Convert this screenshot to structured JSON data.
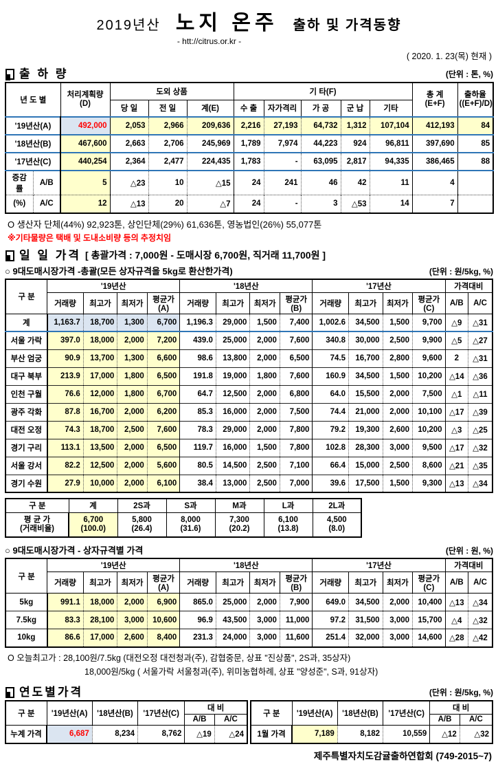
{
  "colors": {
    "highlight_yellow": "#FFFFCC",
    "highlight_blue": "#DBE5F1",
    "accent_red": "#FF0000",
    "row_border_blue": "#2E75B6"
  },
  "header": {
    "year": "2019년산",
    "title": "노지 온주",
    "subtitle": "출하 및 가격동향",
    "url": "- htt://citrus.or.kr -",
    "as_of": "( 2020. 1. 23(목) 현재 )"
  },
  "shipment": {
    "title": "출 하 량",
    "unit": "(단위 : 톤, %)",
    "head": {
      "year_col": "년 도 별",
      "plan_top": "처리계획량",
      "plan_sub": "(D)",
      "outbound_group": "도외 상품",
      "col_today": "당 일",
      "col_prev": "전 일",
      "col_sum_e": "계(E)",
      "etc_group": "기        타(F)",
      "col_export": "수 출",
      "col_quarantine": "자가격리",
      "col_process": "가 공",
      "col_military": "군 납",
      "col_etc": "기타",
      "total_top": "총  계",
      "total_sub": "(E+F)",
      "rate_top": "출하율",
      "rate_sub": "((E+F)/D)"
    },
    "year_rows": [
      {
        "label": "'19년산(A)",
        "cells": [
          "492,000",
          "2,053",
          "2,966",
          "209,636",
          "2,216",
          "27,193",
          "64,732",
          "1,312",
          "107,104",
          "412,193",
          "84"
        ]
      },
      {
        "label": "'18년산(B)",
        "cells": [
          "467,600",
          "2,663",
          "2,706",
          "245,969",
          "1,789",
          "7,974",
          "44,223",
          "924",
          "96,811",
          "397,690",
          "85"
        ]
      },
      {
        "label": "'17년산(C)",
        "cells": [
          "440,254",
          "2,364",
          "2,477",
          "224,435",
          "1,783",
          "-",
          "63,095",
          "2,817",
          "94,335",
          "386,465",
          "88"
        ]
      }
    ],
    "change_label_top": "증감률",
    "change_label_bottom": "(%)",
    "change_rows": [
      {
        "label": "A/B",
        "cells": [
          "5",
          "△23",
          "10",
          "△15",
          "24",
          "241",
          "46",
          "42",
          "11",
          "4",
          ""
        ]
      },
      {
        "label": "A/C",
        "cells": [
          "12",
          "△13",
          "20",
          "△7",
          "24",
          "-",
          "3",
          "△53",
          "14",
          "7",
          ""
        ]
      }
    ],
    "note1": "O 생산자 단체(44%)  92,923톤,  상인단체(29%)  61,636톤,  영농법인(26%)  55,077톤",
    "note2": "※기타물량은 택배 및 도내소비량 등의 추정치임"
  },
  "daily": {
    "title": "일 일 가격",
    "title_detail": "[ 총괄가격 : 7,000원 - 도매시장 6,700원, 직거래 11,700원 ]",
    "price_head": {
      "col": "구  분",
      "y19": "'19년산",
      "y18": "'18년산",
      "y17": "'17년산",
      "cmp": "가격대비",
      "qty": "거래량",
      "high": "최고가",
      "low": "최저가",
      "avgA": "평균가(A)",
      "avgB": "평균가(B)",
      "avgC": "평균가(C)",
      "ab": "A/B",
      "ac": "A/C"
    },
    "overall": {
      "subtitle": "○ 9대도매시장가격 -총괄(모든 상자규격을 5kg로 환산한가격)",
      "unit": "(단위 : 원/5kg, %)",
      "rows": [
        {
          "label": "계",
          "cells": [
            "1,163.7",
            "18,700",
            "1,300",
            "6,700",
            "1,196.3",
            "29,000",
            "1,500",
            "7,400",
            "1,002.6",
            "34,500",
            "1,500",
            "9,700",
            "△9",
            "△31"
          ]
        },
        {
          "label": "서울 가락",
          "cells": [
            "397.0",
            "18,000",
            "2,000",
            "7,200",
            "439.0",
            "25,000",
            "2,000",
            "7,600",
            "340.8",
            "30,000",
            "2,500",
            "9,900",
            "△5",
            "△27"
          ]
        },
        {
          "label": "부산 엄궁",
          "cells": [
            "90.9",
            "13,700",
            "1,300",
            "6,600",
            "98.6",
            "13,800",
            "2,000",
            "6,500",
            "74.5",
            "16,700",
            "2,800",
            "9,600",
            "2",
            "△31"
          ]
        },
        {
          "label": "대구 북부",
          "cells": [
            "213.9",
            "17,000",
            "1,800",
            "6,500",
            "191.8",
            "19,000",
            "1,800",
            "7,600",
            "160.9",
            "34,500",
            "1,500",
            "10,200",
            "△14",
            "△36"
          ]
        },
        {
          "label": "인천 구월",
          "cells": [
            "76.6",
            "12,000",
            "1,800",
            "6,700",
            "64.7",
            "12,500",
            "2,000",
            "6,800",
            "64.0",
            "15,500",
            "2,000",
            "7,500",
            "△1",
            "△11"
          ]
        },
        {
          "label": "광주 각화",
          "cells": [
            "87.8",
            "16,700",
            "2,000",
            "6,200",
            "85.3",
            "16,000",
            "2,000",
            "7,500",
            "74.4",
            "21,000",
            "2,000",
            "10,100",
            "△17",
            "△39"
          ]
        },
        {
          "label": "대전 오정",
          "cells": [
            "74.3",
            "18,700",
            "2,500",
            "7,600",
            "78.3",
            "29,000",
            "2,000",
            "7,800",
            "79.2",
            "19,300",
            "2,600",
            "10,200",
            "△3",
            "△25"
          ]
        },
        {
          "label": "경기 구리",
          "cells": [
            "113.1",
            "13,500",
            "2,000",
            "6,500",
            "119.7",
            "16,000",
            "1,500",
            "7,800",
            "102.8",
            "28,300",
            "3,000",
            "9,500",
            "△17",
            "△32"
          ]
        },
        {
          "label": "서울 강서",
          "cells": [
            "82.2",
            "12,500",
            "2,000",
            "5,600",
            "80.5",
            "14,500",
            "2,500",
            "7,100",
            "66.4",
            "15,000",
            "2,500",
            "8,600",
            "△21",
            "△35"
          ]
        },
        {
          "label": "경기 수원",
          "cells": [
            "27.9",
            "10,000",
            "2,000",
            "6,100",
            "38.4",
            "13,000",
            "2,500",
            "7,000",
            "39.6",
            "17,500",
            "1,500",
            "9,300",
            "△13",
            "△34"
          ]
        }
      ]
    },
    "by_size": {
      "col_label": "구  분",
      "cols": [
        "계",
        "2S과",
        "S과",
        "M과",
        "L과",
        "2L과"
      ],
      "row_label_top": "평 균 가",
      "row_label_bottom": "(거래비율)",
      "prices": [
        "6,700",
        "5,800",
        "8,000",
        "7,300",
        "6,100",
        "4,500"
      ],
      "ratios": [
        "(100.0)",
        "(26.4)",
        "(31.6)",
        "(20.2)",
        "(13.8)",
        "(8.0)"
      ]
    },
    "by_box": {
      "subtitle": "○ 9대도매시장가격 - 상자규격별 가격",
      "unit": "(단위 : 원, %)",
      "rows": [
        {
          "label": "5kg",
          "cells": [
            "991.1",
            "18,000",
            "2,000",
            "6,900",
            "865.0",
            "25,000",
            "2,000",
            "7,900",
            "649.0",
            "34,500",
            "2,000",
            "10,400",
            "△13",
            "△34"
          ]
        },
        {
          "label": "7.5kg",
          "cells": [
            "83.3",
            "28,100",
            "3,000",
            "10,600",
            "96.9",
            "43,500",
            "3,000",
            "11,000",
            "97.2",
            "31,500",
            "3,000",
            "15,700",
            "△4",
            "△32"
          ]
        },
        {
          "label": "10kg",
          "cells": [
            "86.6",
            "17,000",
            "2,600",
            "8,400",
            "231.3",
            "24,000",
            "3,000",
            "11,600",
            "251.4",
            "32,000",
            "3,000",
            "14,600",
            "△28",
            "△42"
          ]
        }
      ]
    },
    "today_high1": "O 오늘최고가 :   28,100원/7.5kg (대전오정   대전청과(주),   감협중문,   상표 \"진상품\",   2S과,  35상자)",
    "today_high2": "18,000원/5kg ( 서울가락   서울청과(주),   위미농협하례,   상표 \"양성준\",   S과,  91상자)"
  },
  "yearly": {
    "title": "연도별가격",
    "unit": "(단위 : 원/5kg, %)",
    "col_label": "구      분",
    "y19": "'19년산(A)",
    "y18": "'18년산(B)",
    "y17": "'17년산(C)",
    "compare_group": "대      비",
    "ab": "A/B",
    "ac": "A/C",
    "left_row": {
      "label": "누계 가격",
      "values": [
        "6,687",
        "8,234",
        "8,762",
        "△19",
        "△24"
      ]
    },
    "right_row": {
      "label": "1월 가격",
      "values": [
        "7,189",
        "8,182",
        "10,559",
        "△12",
        "△32"
      ]
    }
  },
  "footer": "제주특별자치도감귤출하연합회 (749-2015~7)"
}
